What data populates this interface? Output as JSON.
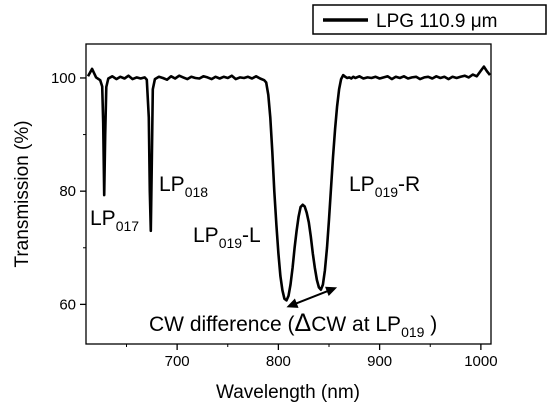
{
  "chart_data": {
    "type": "line",
    "title": "",
    "xlabel": "Wavelength (nm)",
    "ylabel": "Transmission (%)",
    "xlim": [
      610,
      1010
    ],
    "ylim": [
      53,
      106
    ],
    "x_ticks": [
      700,
      800,
      900,
      1000
    ],
    "y_ticks": [
      60,
      80,
      100
    ],
    "grid": false,
    "legend": {
      "placement": "top-right"
    },
    "series": [
      {
        "name": "LPG 110.9 μm",
        "color": "#000000",
        "x": [
          612,
          616,
          620,
          624,
          626,
          627,
          628,
          629,
          630,
          632,
          636,
          640,
          644,
          648,
          652,
          656,
          660,
          664,
          668,
          670,
          672,
          673,
          674,
          675,
          676,
          678,
          682,
          686,
          690,
          694,
          698,
          702,
          706,
          710,
          714,
          718,
          722,
          726,
          730,
          734,
          738,
          742,
          746,
          750,
          754,
          758,
          762,
          766,
          770,
          774,
          778,
          782,
          786,
          788,
          790,
          792,
          794,
          796,
          798,
          800,
          802,
          804,
          806,
          808,
          810,
          812,
          814,
          816,
          818,
          820,
          822,
          824,
          826,
          828,
          830,
          832,
          834,
          836,
          838,
          840,
          842,
          844,
          846,
          848,
          850,
          852,
          854,
          856,
          858,
          860,
          862,
          864,
          866,
          868,
          870,
          872,
          874,
          876,
          880,
          884,
          888,
          892,
          896,
          900,
          904,
          908,
          912,
          916,
          920,
          924,
          928,
          932,
          936,
          940,
          944,
          948,
          952,
          956,
          960,
          964,
          968,
          972,
          976,
          980,
          984,
          988,
          992,
          996,
          1000,
          1003,
          1006,
          1009
        ],
        "y": [
          100.3,
          101.6,
          100.1,
          99.6,
          98.5,
          92,
          79.3,
          90,
          98.4,
          99.9,
          100.3,
          99.8,
          100.2,
          99.9,
          100.4,
          99.8,
          100.1,
          99.9,
          100.1,
          99.7,
          93,
          80,
          73,
          85,
          98,
          99.8,
          100.2,
          100,
          99.7,
          100.3,
          99.9,
          100.4,
          100.1,
          99.8,
          100.2,
          100,
          99.9,
          100.3,
          100.1,
          99.8,
          100.2,
          99.9,
          100.2,
          100,
          100.4,
          99.8,
          100.1,
          100,
          100.2,
          99.9,
          100.3,
          99.9,
          99.6,
          99.2,
          97,
          93,
          87,
          80,
          74,
          69,
          65,
          62.5,
          61,
          60.7,
          61.5,
          63.5,
          66.5,
          70,
          73,
          75.5,
          77.2,
          77.6,
          77.3,
          76.2,
          74.5,
          72,
          69,
          66.5,
          64.3,
          63,
          62.6,
          63.5,
          66,
          70,
          75,
          80.5,
          86,
          91,
          95,
          98,
          99.8,
          100.5,
          100.2,
          100,
          100.1,
          99.9,
          100.2,
          100,
          100.3,
          99.9,
          100.1,
          100,
          100.2,
          99.9,
          100.1,
          100.3,
          99.8,
          100.2,
          100,
          100.3,
          99.9,
          100.1,
          100.2,
          99.8,
          100.1,
          100.2,
          99.9,
          100.3,
          100,
          100.2,
          99.8,
          100.2,
          100,
          100.2,
          100.4,
          100.1,
          100.6,
          100.3,
          101.3,
          102,
          101.2,
          100.5
        ]
      }
    ],
    "annotations": {
      "lp017": {
        "main": "LP",
        "sub": "017",
        "x": 627,
        "y": 79
      },
      "lp018": {
        "main": "LP",
        "sub": "018",
        "x": 674,
        "y": 73
      },
      "lp019_left": {
        "main": "LP",
        "sub": "019",
        "suffix": "-L",
        "x": 808,
        "y": 61
      },
      "lp019_right": {
        "main": "LP",
        "sub": "019",
        "suffix": "-R",
        "x": 858,
        "y": 63
      },
      "cw_difference": {
        "prefix": "CW difference (",
        "delta": "Δ",
        "middle": "CW at LP",
        "sub": "019",
        "suffix": " )",
        "arrow_from": {
          "x": 808,
          "y": 59.5
        },
        "arrow_to": {
          "x": 858,
          "y": 63
        }
      }
    }
  }
}
